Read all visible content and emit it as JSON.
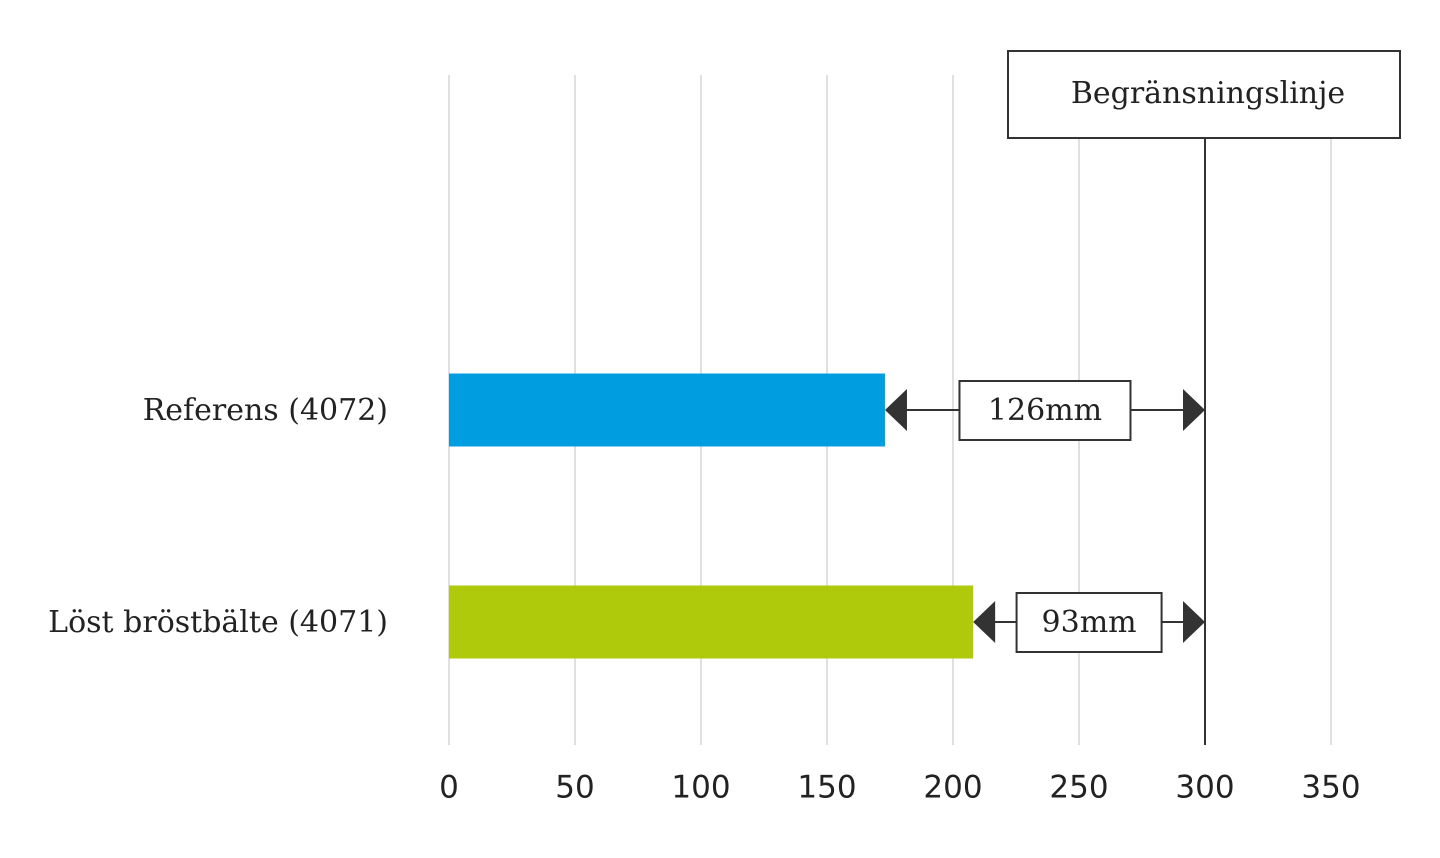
{
  "chart_data": {
    "type": "bar",
    "orientation": "horizontal",
    "categories": [
      "Referens (4072)",
      "Löst bröstbälte (4071)"
    ],
    "values": [
      173,
      208
    ],
    "colors": [
      "#009ee0",
      "#afca0b"
    ],
    "gap_labels": [
      "126mm",
      "93mm"
    ],
    "limit": {
      "value": 300,
      "label": "Begränsningslinje"
    },
    "xlim": [
      0,
      375
    ],
    "xticks": [
      0,
      50,
      100,
      150,
      200,
      250,
      300,
      350
    ],
    "grid": true
  }
}
